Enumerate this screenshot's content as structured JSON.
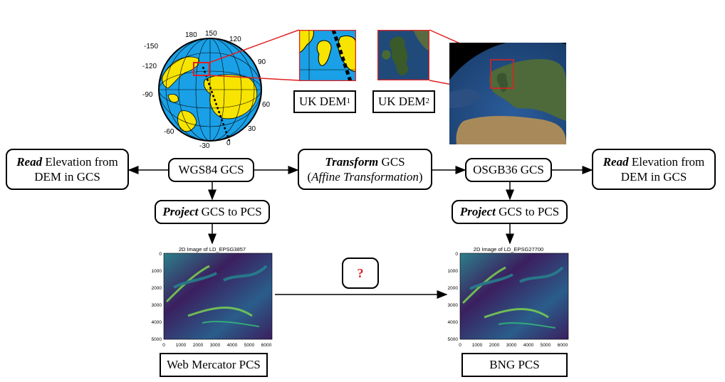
{
  "globe": {
    "longitudes": [
      "-150",
      "-120",
      "-90",
      "-60",
      "-30",
      "180",
      "150",
      "120",
      "90",
      "60",
      "30",
      "0"
    ]
  },
  "labels": {
    "uk_dem_1": "UK DEM",
    "uk_dem_1_sup": "1",
    "uk_dem_2": "UK DEM",
    "uk_dem_2_sup": "2"
  },
  "boxes": {
    "read_left": {
      "emph": "Read",
      "rest": " Elevation from",
      "line2": "DEM in GCS"
    },
    "wgs84": "WGS84 GCS",
    "transform": {
      "emph": "Transform",
      "rest": " GCS",
      "line2_open": "(",
      "line2_emph": "Affine Transformation",
      "line2_close": ")"
    },
    "osgb36": "OSGB36 GCS",
    "read_right": {
      "emph": "Read",
      "rest": " Elevation from",
      "line2": "DEM in GCS"
    },
    "project_left": {
      "emph": "Project",
      "rest": " GCS to PCS"
    },
    "project_right": {
      "emph": "Project",
      "rest": " GCS to PCS"
    },
    "question": "?",
    "web_mercator": "Web Mercator PCS",
    "bng": "BNG PCS"
  },
  "plots": {
    "left": {
      "title": "2D Image of LD_EPSG3857"
    },
    "right": {
      "title": "2D Image of LD_EPSG27700"
    },
    "y_ticks": [
      "0",
      "1000",
      "2000",
      "3000",
      "4000",
      "5000"
    ],
    "x_ticks": [
      "0",
      "1000",
      "2000",
      "3000",
      "4000",
      "5000",
      "6000"
    ]
  },
  "colors": {
    "accent_red": "#e02020",
    "ocean": "#1aa0e6",
    "land": "#f7e400",
    "plot_dark": "#3b1f5f",
    "plot_mid": "#26838e",
    "plot_light": "#7ad151"
  }
}
